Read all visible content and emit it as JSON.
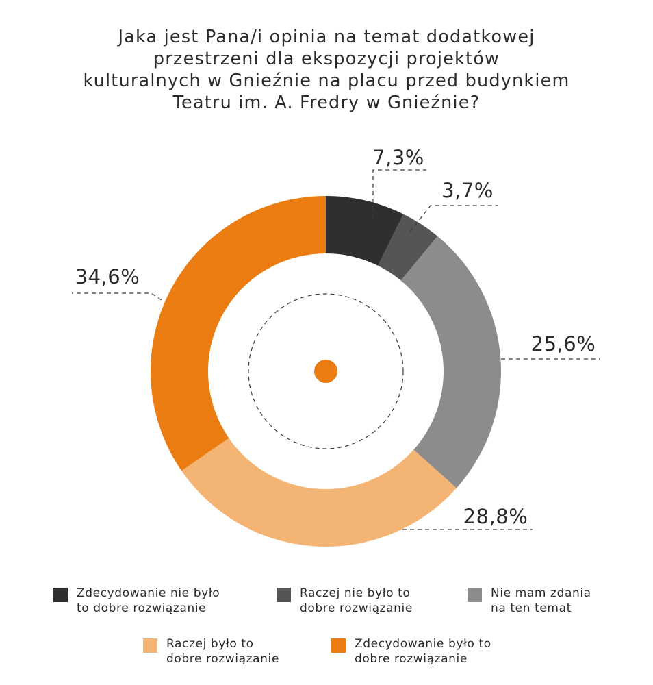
{
  "title_lines": [
    "Jaka jest Pana/i opinia na temat dodatkowej",
    "przestrzeni dla ekspozycji projektów",
    "kulturalnych w Gnieźnie na placu przed budynkiem",
    "Teatru im. A. Fredry w Gnieźnie?"
  ],
  "chart_data": {
    "type": "pie",
    "title": "Jaka jest Pana/i opinia na temat dodatkowej przestrzeni dla ekspozycji projektów kulturalnych w Gnieźnie na placu przed budynkiem Teatru im. A. Fredry w Gnieźnie?",
    "style": "donut",
    "categories": [
      "Zdecydowanie nie było to dobre rozwiązanie",
      "Raczej nie było to dobre rozwiązanie",
      "Nie mam zdania na ten temat",
      "Raczej było to dobre rozwiązanie",
      "Zdecydowanie było to dobre rozwiązanie"
    ],
    "values": [
      7.3,
      3.7,
      25.6,
      28.8,
      34.6
    ],
    "labels": [
      "7,3%",
      "3,7%",
      "25,6%",
      "28,8%",
      "34,6%"
    ],
    "colors": [
      "#2e2f2e",
      "#555555",
      "#8c8c8c",
      "#f4b574",
      "#ea7c12"
    ],
    "legend_position": "bottom"
  },
  "legend": [
    {
      "lines": [
        "Zdecydowanie nie było",
        "to dobre rozwiązanie"
      ],
      "color": "#2e2f2e"
    },
    {
      "lines": [
        "Raczej nie było to",
        "dobre rozwiązanie"
      ],
      "color": "#555555"
    },
    {
      "lines": [
        "Nie mam zdania",
        "na ten temat"
      ],
      "color": "#8c8c8c"
    },
    {
      "lines": [
        "Raczej było to",
        "dobre rozwiązanie"
      ],
      "color": "#f4b574"
    },
    {
      "lines": [
        "Zdecydowanie było to",
        "dobre rozwiązanie"
      ],
      "color": "#ea7c12"
    }
  ],
  "center_dot_color": "#ea7c12"
}
